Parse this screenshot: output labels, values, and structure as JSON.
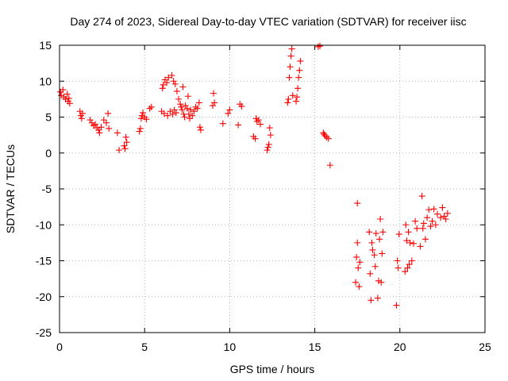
{
  "chart_data": {
    "type": "scatter",
    "title": "Day 274 of 2023, Sidereal Day-to-day VTEC variation (SDTVAR) for receiver iisc",
    "xlabel": "GPS time / hours",
    "ylabel": "SDTVAR / TECUs",
    "xlim": [
      0,
      25
    ],
    "ylim": [
      -25,
      15
    ],
    "xticks": [
      0,
      5,
      10,
      15,
      20,
      25
    ],
    "yticks": [
      -25,
      -20,
      -15,
      -10,
      -5,
      0,
      5,
      10,
      15
    ],
    "xtick_labels": [
      "0",
      "5",
      "10",
      "15",
      "20",
      "25"
    ],
    "ytick_labels": [
      "-25",
      "-20",
      "-15",
      "-10",
      "-5",
      "0",
      "5",
      "10",
      "15"
    ],
    "grid": true,
    "marker": "+",
    "marker_color": "#ff0000",
    "series": [
      {
        "name": "SDTVAR",
        "points": [
          [
            0.05,
            8.5
          ],
          [
            0.1,
            8.0
          ],
          [
            0.2,
            8.8
          ],
          [
            0.25,
            7.8
          ],
          [
            0.35,
            7.5
          ],
          [
            0.45,
            8.2
          ],
          [
            0.5,
            7.2
          ],
          [
            0.55,
            7.6
          ],
          [
            0.6,
            6.9
          ],
          [
            1.2,
            5.8
          ],
          [
            1.25,
            5.2
          ],
          [
            1.3,
            4.8
          ],
          [
            1.35,
            5.5
          ],
          [
            1.8,
            4.6
          ],
          [
            1.9,
            4.2
          ],
          [
            2.0,
            3.8
          ],
          [
            2.1,
            4.0
          ],
          [
            2.2,
            3.5
          ],
          [
            2.3,
            3.2
          ],
          [
            2.35,
            2.8
          ],
          [
            2.45,
            3.6
          ],
          [
            2.6,
            4.6
          ],
          [
            2.75,
            4.2
          ],
          [
            2.85,
            5.5
          ],
          [
            2.9,
            3.4
          ],
          [
            3.4,
            2.8
          ],
          [
            3.5,
            0.4
          ],
          [
            3.8,
            1.0
          ],
          [
            3.85,
            0.6
          ],
          [
            3.9,
            2.2
          ],
          [
            3.95,
            1.5
          ],
          [
            4.7,
            3.0
          ],
          [
            4.75,
            3.4
          ],
          [
            4.8,
            4.8
          ],
          [
            4.85,
            5.2
          ],
          [
            4.9,
            5.6
          ],
          [
            5.0,
            5.0
          ],
          [
            5.1,
            4.7
          ],
          [
            5.3,
            6.2
          ],
          [
            5.4,
            6.4
          ],
          [
            6.0,
            5.8
          ],
          [
            6.05,
            9.0
          ],
          [
            6.1,
            9.5
          ],
          [
            6.15,
            5.5
          ],
          [
            6.2,
            10.2
          ],
          [
            6.3,
            9.8
          ],
          [
            6.35,
            5.2
          ],
          [
            6.4,
            10.5
          ],
          [
            6.5,
            5.8
          ],
          [
            6.6,
            10.8
          ],
          [
            6.65,
            5.4
          ],
          [
            6.7,
            10.0
          ],
          [
            6.75,
            6.0
          ],
          [
            6.8,
            9.6
          ],
          [
            6.85,
            5.6
          ],
          [
            6.9,
            8.6
          ],
          [
            7.0,
            7.5
          ],
          [
            7.1,
            6.8
          ],
          [
            7.15,
            6.4
          ],
          [
            7.2,
            6.0
          ],
          [
            7.25,
            9.2
          ],
          [
            7.3,
            5.4
          ],
          [
            7.35,
            5.0
          ],
          [
            7.4,
            6.6
          ],
          [
            7.5,
            6.2
          ],
          [
            7.55,
            7.9
          ],
          [
            7.6,
            5.4
          ],
          [
            7.65,
            4.8
          ],
          [
            7.7,
            6.0
          ],
          [
            7.8,
            5.2
          ],
          [
            7.9,
            5.8
          ],
          [
            8.0,
            6.4
          ],
          [
            8.1,
            6.2
          ],
          [
            8.2,
            7.0
          ],
          [
            8.25,
            3.6
          ],
          [
            8.3,
            3.2
          ],
          [
            9.0,
            6.6
          ],
          [
            9.05,
            8.3
          ],
          [
            9.1,
            7.0
          ],
          [
            9.6,
            4.1
          ],
          [
            9.9,
            5.5
          ],
          [
            10.0,
            6.0
          ],
          [
            10.5,
            3.9
          ],
          [
            10.6,
            6.8
          ],
          [
            10.7,
            6.5
          ],
          [
            11.4,
            2.3
          ],
          [
            11.5,
            2.0
          ],
          [
            11.55,
            4.8
          ],
          [
            11.6,
            4.4
          ],
          [
            11.7,
            4.6
          ],
          [
            11.8,
            4.0
          ],
          [
            12.2,
            0.4
          ],
          [
            12.25,
            0.8
          ],
          [
            12.3,
            1.2
          ],
          [
            12.35,
            3.5
          ],
          [
            12.4,
            2.5
          ],
          [
            13.4,
            7.0
          ],
          [
            13.45,
            7.5
          ],
          [
            13.5,
            10.5
          ],
          [
            13.55,
            12.0
          ],
          [
            13.6,
            13.5
          ],
          [
            13.65,
            14.5
          ],
          [
            13.7,
            8.0
          ],
          [
            13.9,
            7.2
          ],
          [
            13.95,
            7.8
          ],
          [
            14.0,
            9.0
          ],
          [
            14.05,
            10.5
          ],
          [
            14.1,
            11.5
          ],
          [
            14.15,
            12.8
          ],
          [
            15.2,
            14.8
          ],
          [
            15.3,
            14.9
          ],
          [
            15.5,
            2.8
          ],
          [
            15.55,
            2.6
          ],
          [
            15.6,
            2.4
          ],
          [
            15.7,
            2.2
          ],
          [
            15.8,
            2.0
          ],
          [
            15.9,
            -1.7
          ],
          [
            17.4,
            -18.0
          ],
          [
            17.45,
            -14.5
          ],
          [
            17.5,
            -12.5
          ],
          [
            17.5,
            -7.0
          ],
          [
            17.55,
            -16.0
          ],
          [
            17.6,
            -18.6
          ],
          [
            17.65,
            -15.2
          ],
          [
            18.2,
            -11.0
          ],
          [
            18.25,
            -16.8
          ],
          [
            18.3,
            -20.5
          ],
          [
            18.35,
            -12.5
          ],
          [
            18.4,
            -13.5
          ],
          [
            18.5,
            -14.2
          ],
          [
            18.55,
            -15.8
          ],
          [
            18.6,
            -11.2
          ],
          [
            18.7,
            -20.2
          ],
          [
            18.75,
            -17.8
          ],
          [
            18.8,
            -12.0
          ],
          [
            18.85,
            -9.2
          ],
          [
            18.9,
            -18.0
          ],
          [
            18.95,
            -14.0
          ],
          [
            19.0,
            -11.0
          ],
          [
            19.8,
            -21.2
          ],
          [
            19.85,
            -15.0
          ],
          [
            19.9,
            -16.0
          ],
          [
            19.95,
            -11.3
          ],
          [
            20.3,
            -16.5
          ],
          [
            20.35,
            -10.0
          ],
          [
            20.4,
            -12.2
          ],
          [
            20.45,
            -16.0
          ],
          [
            20.5,
            -11.0
          ],
          [
            20.55,
            -15.5
          ],
          [
            20.6,
            -12.5
          ],
          [
            20.7,
            -15.0
          ],
          [
            20.8,
            -12.6
          ],
          [
            20.9,
            -9.5
          ],
          [
            21.0,
            -10.5
          ],
          [
            21.2,
            -13.0
          ],
          [
            21.3,
            -6.0
          ],
          [
            21.35,
            -10.5
          ],
          [
            21.4,
            -9.8
          ],
          [
            21.5,
            -12.0
          ],
          [
            21.6,
            -9.0
          ],
          [
            21.7,
            -7.9
          ],
          [
            21.8,
            -10.2
          ],
          [
            21.9,
            -9.5
          ],
          [
            22.0,
            -7.8
          ],
          [
            22.1,
            -10.0
          ],
          [
            22.2,
            -8.5
          ],
          [
            22.4,
            -9.0
          ],
          [
            22.5,
            -7.6
          ],
          [
            22.6,
            -8.8
          ],
          [
            22.7,
            -9.2
          ],
          [
            22.8,
            -8.4
          ]
        ]
      }
    ]
  }
}
